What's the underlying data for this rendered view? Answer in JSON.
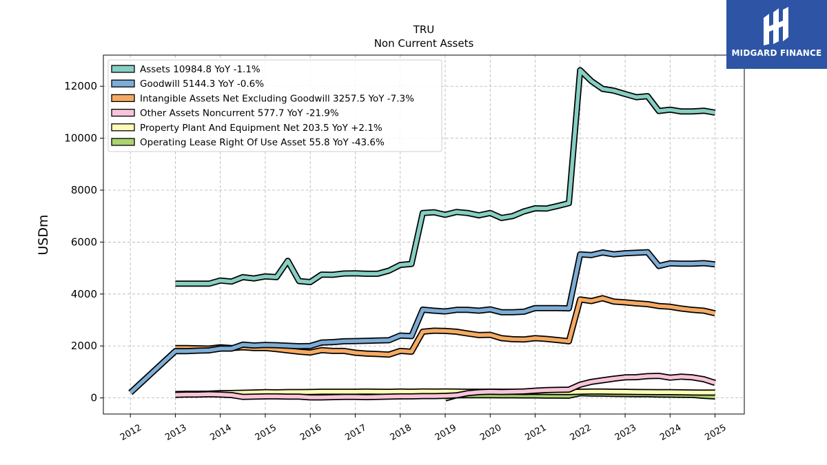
{
  "brand": {
    "name": "MIDGARD FINANCE",
    "logo": "midgard-logo-icon",
    "color": "#2e55a5"
  },
  "chart_data": {
    "type": "line",
    "title": "TRU",
    "subtitle": "Non Current  Assets",
    "xlabel": "",
    "ylabel": "USDm",
    "xlim": [
      2011.4,
      2025.65
    ],
    "ylim": [
      -620,
      13200
    ],
    "xticks": [
      "2012",
      "2013",
      "2014",
      "2015",
      "2016",
      "2017",
      "2018",
      "2019",
      "2020",
      "2021",
      "2022",
      "2023",
      "2024",
      "2025"
    ],
    "yticks": [
      0,
      2000,
      4000,
      6000,
      8000,
      10000,
      12000
    ],
    "grid": true,
    "legend_position": "top-left",
    "series": [
      {
        "name": "Assets",
        "legend": "Assets  10984.8 YoY -1.1%",
        "color": "#86cfc2",
        "points": [
          [
            2013.0,
            4400
          ],
          [
            2013.25,
            4400
          ],
          [
            2013.5,
            4400
          ],
          [
            2013.75,
            4400
          ],
          [
            2014.0,
            4520
          ],
          [
            2014.25,
            4480
          ],
          [
            2014.5,
            4650
          ],
          [
            2014.75,
            4600
          ],
          [
            2015.0,
            4680
          ],
          [
            2015.25,
            4650
          ],
          [
            2015.5,
            5280
          ],
          [
            2015.75,
            4500
          ],
          [
            2016.0,
            4460
          ],
          [
            2016.25,
            4750
          ],
          [
            2016.5,
            4740
          ],
          [
            2016.75,
            4790
          ],
          [
            2017.0,
            4800
          ],
          [
            2017.25,
            4780
          ],
          [
            2017.5,
            4780
          ],
          [
            2017.75,
            4900
          ],
          [
            2018.0,
            5120
          ],
          [
            2018.25,
            5160
          ],
          [
            2018.5,
            7120
          ],
          [
            2018.75,
            7150
          ],
          [
            2019.0,
            7050
          ],
          [
            2019.25,
            7160
          ],
          [
            2019.5,
            7120
          ],
          [
            2019.75,
            7030
          ],
          [
            2020.0,
            7120
          ],
          [
            2020.25,
            6930
          ],
          [
            2020.5,
            7000
          ],
          [
            2020.75,
            7180
          ],
          [
            2021.0,
            7300
          ],
          [
            2021.25,
            7290
          ],
          [
            2021.5,
            7390
          ],
          [
            2021.75,
            7500
          ],
          [
            2022.0,
            12620
          ],
          [
            2022.25,
            12200
          ],
          [
            2022.5,
            11900
          ],
          [
            2022.75,
            11830
          ],
          [
            2023.0,
            11700
          ],
          [
            2023.25,
            11580
          ],
          [
            2023.5,
            11620
          ],
          [
            2023.75,
            11050
          ],
          [
            2024.0,
            11100
          ],
          [
            2024.25,
            11030
          ],
          [
            2024.5,
            11030
          ],
          [
            2024.75,
            11060
          ],
          [
            2025.0,
            10985
          ]
        ]
      },
      {
        "name": "Goodwill",
        "legend": "Goodwill  5144.3 YoY -0.6%",
        "color": "#7dadd6",
        "points": [
          [
            2012.0,
            200
          ],
          [
            2013.0,
            1800
          ],
          [
            2013.25,
            1800
          ],
          [
            2013.5,
            1820
          ],
          [
            2013.75,
            1830
          ],
          [
            2014.0,
            1900
          ],
          [
            2014.25,
            1900
          ],
          [
            2014.5,
            2050
          ],
          [
            2014.75,
            2020
          ],
          [
            2015.0,
            2040
          ],
          [
            2015.25,
            2030
          ],
          [
            2015.5,
            2010
          ],
          [
            2015.75,
            1990
          ],
          [
            2016.0,
            2000
          ],
          [
            2016.25,
            2130
          ],
          [
            2016.5,
            2150
          ],
          [
            2016.75,
            2180
          ],
          [
            2017.0,
            2190
          ],
          [
            2017.25,
            2200
          ],
          [
            2017.5,
            2210
          ],
          [
            2017.75,
            2220
          ],
          [
            2018.0,
            2400
          ],
          [
            2018.25,
            2380
          ],
          [
            2018.5,
            3400
          ],
          [
            2018.75,
            3360
          ],
          [
            2019.0,
            3330
          ],
          [
            2019.25,
            3390
          ],
          [
            2019.5,
            3390
          ],
          [
            2019.75,
            3360
          ],
          [
            2020.0,
            3410
          ],
          [
            2020.25,
            3300
          ],
          [
            2020.5,
            3300
          ],
          [
            2020.75,
            3320
          ],
          [
            2021.0,
            3460
          ],
          [
            2021.25,
            3460
          ],
          [
            2021.5,
            3460
          ],
          [
            2021.75,
            3450
          ],
          [
            2022.0,
            5530
          ],
          [
            2022.25,
            5500
          ],
          [
            2022.5,
            5600
          ],
          [
            2022.75,
            5530
          ],
          [
            2023.0,
            5570
          ],
          [
            2023.25,
            5590
          ],
          [
            2023.5,
            5610
          ],
          [
            2023.75,
            5080
          ],
          [
            2024.0,
            5180
          ],
          [
            2024.25,
            5170
          ],
          [
            2024.5,
            5170
          ],
          [
            2024.75,
            5190
          ],
          [
            2025.0,
            5144
          ]
        ]
      },
      {
        "name": "Intangible Assets Net Excluding Goodwill",
        "legend": "Intangible Assets Net Excluding Goodwill  3257.5 YoY -7.3%",
        "color": "#f5aa63",
        "points": [
          [
            2013.0,
            1920
          ],
          [
            2013.25,
            1920
          ],
          [
            2013.5,
            1910
          ],
          [
            2013.75,
            1900
          ],
          [
            2014.0,
            1950
          ],
          [
            2014.25,
            1920
          ],
          [
            2014.5,
            1950
          ],
          [
            2014.75,
            1920
          ],
          [
            2015.0,
            1920
          ],
          [
            2015.25,
            1880
          ],
          [
            2015.5,
            1830
          ],
          [
            2015.75,
            1780
          ],
          [
            2016.0,
            1750
          ],
          [
            2016.25,
            1840
          ],
          [
            2016.5,
            1810
          ],
          [
            2016.75,
            1810
          ],
          [
            2017.0,
            1740
          ],
          [
            2017.25,
            1710
          ],
          [
            2017.5,
            1690
          ],
          [
            2017.75,
            1670
          ],
          [
            2018.0,
            1810
          ],
          [
            2018.25,
            1780
          ],
          [
            2018.5,
            2550
          ],
          [
            2018.75,
            2590
          ],
          [
            2019.0,
            2580
          ],
          [
            2019.25,
            2550
          ],
          [
            2019.5,
            2480
          ],
          [
            2019.75,
            2420
          ],
          [
            2020.0,
            2430
          ],
          [
            2020.25,
            2300
          ],
          [
            2020.5,
            2260
          ],
          [
            2020.75,
            2250
          ],
          [
            2021.0,
            2300
          ],
          [
            2021.25,
            2270
          ],
          [
            2021.5,
            2230
          ],
          [
            2021.75,
            2180
          ],
          [
            2022.0,
            3790
          ],
          [
            2022.25,
            3730
          ],
          [
            2022.5,
            3840
          ],
          [
            2022.75,
            3710
          ],
          [
            2023.0,
            3680
          ],
          [
            2023.25,
            3640
          ],
          [
            2023.5,
            3610
          ],
          [
            2023.75,
            3540
          ],
          [
            2024.0,
            3510
          ],
          [
            2024.25,
            3440
          ],
          [
            2024.5,
            3390
          ],
          [
            2024.75,
            3360
          ],
          [
            2025.0,
            3258
          ]
        ]
      },
      {
        "name": "Other Assets Noncurrent",
        "legend": "Other Assets Noncurrent  577.7 YoY -21.9%",
        "color": "#f7c4d9",
        "points": [
          [
            2013.0,
            120
          ],
          [
            2013.25,
            130
          ],
          [
            2013.5,
            130
          ],
          [
            2013.75,
            140
          ],
          [
            2014.0,
            130
          ],
          [
            2014.25,
            110
          ],
          [
            2014.5,
            40
          ],
          [
            2014.75,
            50
          ],
          [
            2015.0,
            60
          ],
          [
            2015.25,
            60
          ],
          [
            2015.5,
            50
          ],
          [
            2015.75,
            50
          ],
          [
            2016.0,
            20
          ],
          [
            2016.25,
            20
          ],
          [
            2016.5,
            30
          ],
          [
            2016.75,
            40
          ],
          [
            2017.0,
            40
          ],
          [
            2017.25,
            30
          ],
          [
            2017.5,
            40
          ],
          [
            2017.75,
            50
          ],
          [
            2018.0,
            60
          ],
          [
            2018.25,
            60
          ],
          [
            2018.5,
            70
          ],
          [
            2018.75,
            70
          ],
          [
            2019.0,
            80
          ],
          [
            2019.25,
            100
          ],
          [
            2019.5,
            180
          ],
          [
            2019.75,
            220
          ],
          [
            2020.0,
            240
          ],
          [
            2020.25,
            230
          ],
          [
            2020.5,
            240
          ],
          [
            2020.75,
            250
          ],
          [
            2021.0,
            280
          ],
          [
            2021.25,
            300
          ],
          [
            2021.5,
            310
          ],
          [
            2021.75,
            320
          ],
          [
            2022.0,
            510
          ],
          [
            2022.25,
            620
          ],
          [
            2022.5,
            680
          ],
          [
            2022.75,
            740
          ],
          [
            2023.0,
            790
          ],
          [
            2023.25,
            800
          ],
          [
            2023.5,
            840
          ],
          [
            2023.75,
            850
          ],
          [
            2024.0,
            780
          ],
          [
            2024.25,
            820
          ],
          [
            2024.5,
            790
          ],
          [
            2024.75,
            720
          ],
          [
            2025.0,
            578
          ]
        ]
      },
      {
        "name": "Property Plant And Equipment Net",
        "legend": "Property Plant And Equipment Net  203.5 YoY +2.1%",
        "color": "#fdfdb8",
        "points": [
          [
            2013.0,
            150
          ],
          [
            2013.25,
            160
          ],
          [
            2013.5,
            160
          ],
          [
            2013.75,
            165
          ],
          [
            2014.0,
            180
          ],
          [
            2014.25,
            190
          ],
          [
            2014.5,
            200
          ],
          [
            2014.75,
            210
          ],
          [
            2015.0,
            220
          ],
          [
            2015.25,
            215
          ],
          [
            2015.5,
            225
          ],
          [
            2015.75,
            225
          ],
          [
            2016.0,
            230
          ],
          [
            2016.25,
            240
          ],
          [
            2016.5,
            240
          ],
          [
            2016.75,
            240
          ],
          [
            2017.0,
            240
          ],
          [
            2017.25,
            245
          ],
          [
            2017.5,
            240
          ],
          [
            2017.75,
            235
          ],
          [
            2018.0,
            245
          ],
          [
            2018.25,
            240
          ],
          [
            2018.5,
            250
          ],
          [
            2018.75,
            245
          ],
          [
            2019.0,
            250
          ],
          [
            2019.25,
            245
          ],
          [
            2019.5,
            240
          ],
          [
            2019.75,
            240
          ],
          [
            2020.0,
            240
          ],
          [
            2020.25,
            240
          ],
          [
            2020.5,
            235
          ],
          [
            2020.75,
            230
          ],
          [
            2021.0,
            235
          ],
          [
            2021.25,
            230
          ],
          [
            2021.5,
            225
          ],
          [
            2021.75,
            225
          ],
          [
            2022.0,
            240
          ],
          [
            2022.25,
            245
          ],
          [
            2022.5,
            245
          ],
          [
            2022.75,
            240
          ],
          [
            2023.0,
            235
          ],
          [
            2023.25,
            230
          ],
          [
            2023.5,
            225
          ],
          [
            2023.75,
            220
          ],
          [
            2024.0,
            220
          ],
          [
            2024.25,
            215
          ],
          [
            2024.5,
            210
          ],
          [
            2024.75,
            205
          ],
          [
            2025.0,
            204
          ]
        ]
      },
      {
        "name": "Operating Lease Right Of Use Asset",
        "legend": "Operating Lease Right Of Use Asset  55.8 YoY -43.6%",
        "color": "#a9d46f",
        "points": [
          [
            2019.0,
            -20
          ],
          [
            2019.25,
            100
          ],
          [
            2019.5,
            105
          ],
          [
            2019.75,
            105
          ],
          [
            2020.0,
            105
          ],
          [
            2020.25,
            100
          ],
          [
            2020.5,
            100
          ],
          [
            2020.75,
            95
          ],
          [
            2021.0,
            95
          ],
          [
            2021.25,
            90
          ],
          [
            2021.5,
            90
          ],
          [
            2021.75,
            85
          ],
          [
            2022.0,
            180
          ],
          [
            2022.25,
            170
          ],
          [
            2022.5,
            165
          ],
          [
            2022.75,
            155
          ],
          [
            2023.0,
            150
          ],
          [
            2023.25,
            145
          ],
          [
            2023.5,
            140
          ],
          [
            2023.75,
            130
          ],
          [
            2024.0,
            125
          ],
          [
            2024.25,
            120
          ],
          [
            2024.5,
            115
          ],
          [
            2024.75,
            80
          ],
          [
            2025.0,
            56
          ]
        ]
      }
    ]
  }
}
